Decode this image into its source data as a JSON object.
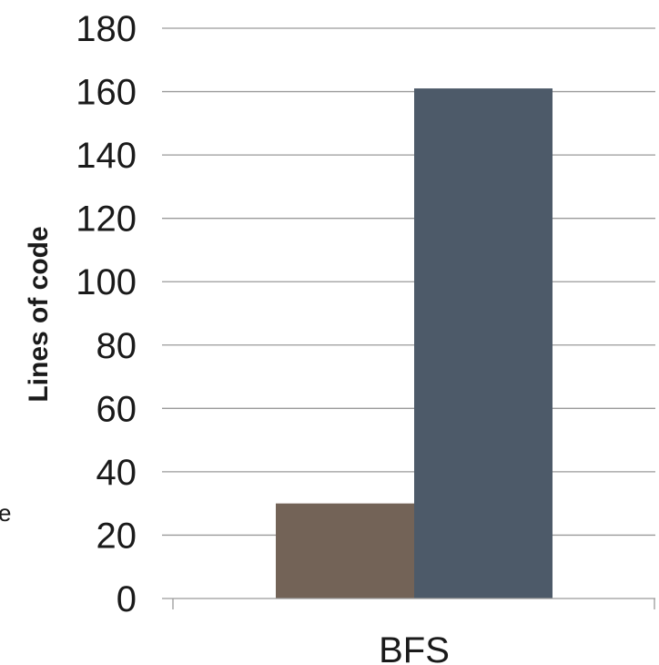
{
  "chart_data": {
    "type": "bar",
    "categories": [
      "BFS"
    ],
    "series": [
      {
        "values": [
          30
        ],
        "color": "#736357"
      },
      {
        "values": [
          161
        ],
        "color": "#4d5a69"
      }
    ],
    "ylabel": "Lines of code",
    "xlabel": "",
    "ylim": [
      0,
      180
    ],
    "yticks": [
      0,
      20,
      40,
      60,
      80,
      100,
      120,
      140,
      160,
      180
    ],
    "grid": true,
    "legend": "none"
  },
  "fragments": {
    "left_edge_text": "e"
  }
}
